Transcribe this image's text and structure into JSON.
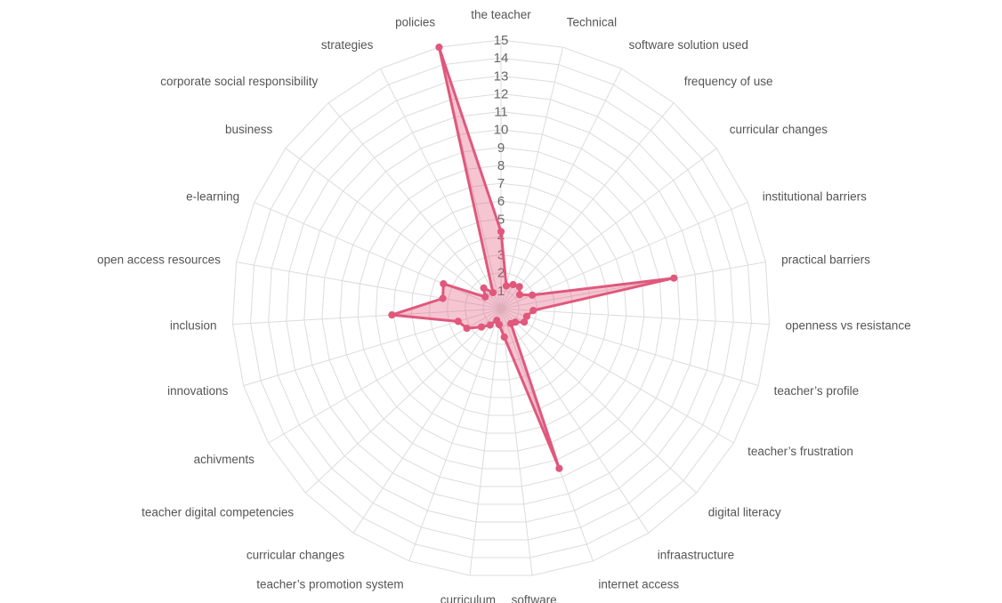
{
  "chart_data": {
    "type": "radar",
    "title": "",
    "rmax": 15,
    "ticks": [
      "1",
      "2",
      "3",
      "4",
      "5",
      "6",
      "7",
      "8",
      "9",
      "10",
      "11",
      "12",
      "13",
      "14",
      "15"
    ],
    "categories": [
      "the teacher",
      "Technical",
      "software solution used",
      "frequency of use",
      "curricular changes",
      "institutional barriers",
      "practical barriers",
      "openness vs resistance",
      "teacher’s profile",
      "teacher’s frustration",
      "digital literacy",
      "infraastructure",
      "internet access",
      "software",
      "curriculum",
      "teacher’s promotion system",
      "curricular changes",
      "teacher digital competencies",
      "achivments",
      "innovations",
      "inclusion",
      "open access resources",
      "e-learning",
      "business",
      "corporate social responsibility",
      "strategies",
      "policies"
    ],
    "series": [
      {
        "values": [
          4.3,
          1.3,
          1.5,
          1.6,
          1.3,
          1.9,
          9.8,
          1.8,
          1.5,
          1.5,
          1.1,
          1.0,
          9.5,
          1.6,
          0.9,
          0.7,
          1.1,
          1.5,
          2.2,
          2.5,
          6.1,
          3.3,
          3.5,
          1.1,
          1.5,
          1.0,
          15.0
        ],
        "color": "#e0587c"
      }
    ]
  }
}
